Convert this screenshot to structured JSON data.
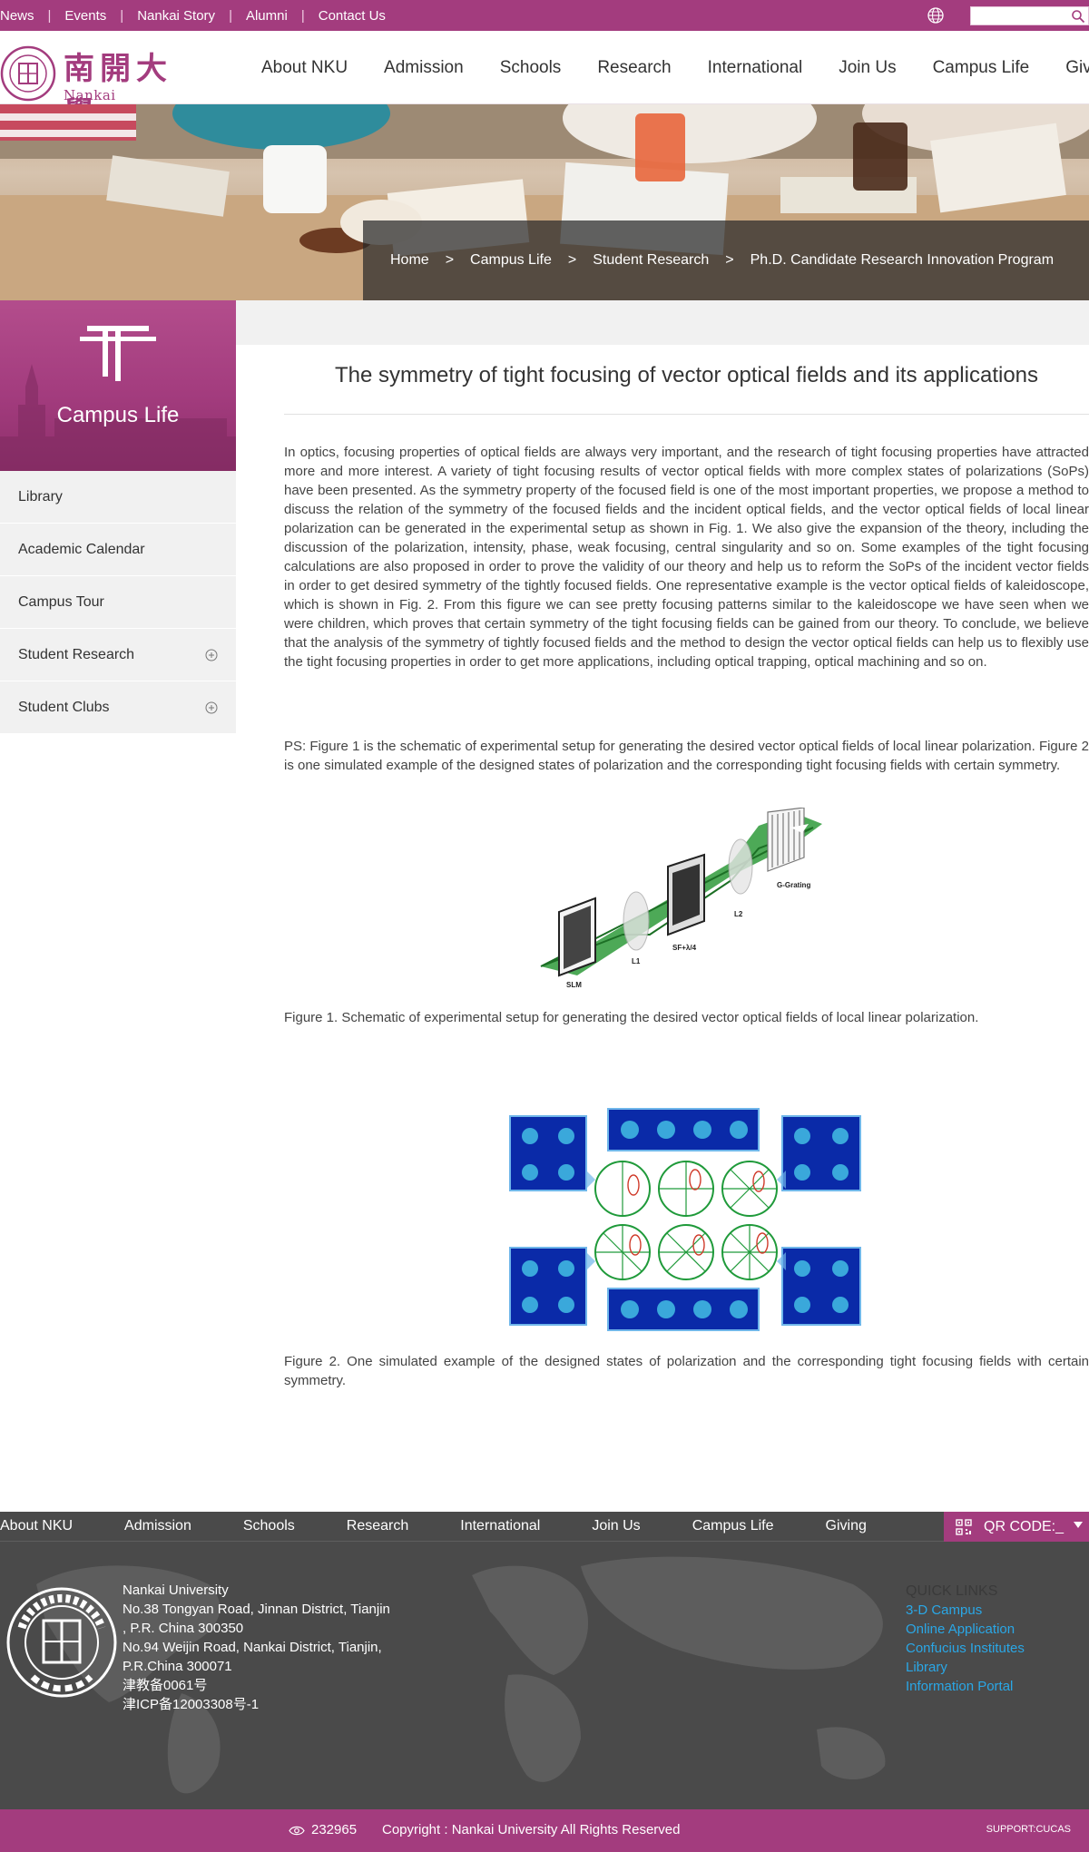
{
  "topbar": {
    "links": [
      "News",
      "Events",
      "Nankai Story",
      "Alumni",
      "Contact Us"
    ],
    "search": {
      "value": "",
      "placeholder": ""
    }
  },
  "header": {
    "logo_cn": "南開大學",
    "logo_en": "Nankai University",
    "nav": [
      "About NKU",
      "Admission",
      "Schools",
      "Research",
      "International",
      "Join Us",
      "Campus Life",
      "Giving"
    ]
  },
  "breadcrumb": [
    "Home",
    "Campus Life",
    "Student Research",
    "Ph.D. Candidate Research Innovation Program"
  ],
  "breadcrumb_sep": ">",
  "sidebar": {
    "title": "Campus Life",
    "items": [
      {
        "label": "Library",
        "expandable": false
      },
      {
        "label": "Academic Calendar",
        "expandable": false
      },
      {
        "label": "Campus Tour",
        "expandable": false
      },
      {
        "label": "Student Research",
        "expandable": true
      },
      {
        "label": "Student Clubs",
        "expandable": true
      }
    ]
  },
  "article": {
    "title": "The symmetry of tight focusing of vector optical fields and its applications",
    "paragraph1": "In optics, focusing properties of optical fields are always very important, and the research of tight focusing properties have attracted more and more interest. A variety of tight focusing results of vector optical fields with more complex states of polarizations (SoPs) have been presented. As the symmetry property of the focused field is one of the most important properties, we propose a method to discuss the relation of the symmetry of the focused fields and the incident optical fields, and the vector optical fields of local linear polarization can be generated in the experimental setup as shown in Fig. 1. We also give the expansion of the theory, including the discussion of the polarization, intensity, phase, weak focusing, central singularity and so on. Some examples of the tight focusing calculations are also proposed in order to prove the validity of our theory and help us to reform the SoPs of the incident vector fields in order to get desired symmetry of the tightly focused fields. One representative example is the vector optical fields of kaleidoscope, which is shown in Fig. 2. From this figure we can see pretty focusing patterns similar to the kaleidoscope we have seen when we were children, which proves that certain symmetry of the tight focusing fields can be gained from our theory. To conclude, we believe that the analysis of the symmetry of tightly focused fields and the method to design the vector optical fields can help us to flexibly use the tight focusing properties in order to get more applications, including optical trapping, optical machining and so on.",
    "paragraph2": "PS: Figure 1 is the schematic of experimental setup for generating the desired vector optical fields of local linear polarization. Figure 2 is one simulated example of the designed states of polarization and the corresponding tight focusing fields with certain symmetry.",
    "figure1_labels": [
      "SLM",
      "L1",
      "SF+λ/4",
      "L2",
      "G-Grating"
    ],
    "caption1": "Figure 1. Schematic of experimental setup for generating the desired vector optical fields of local linear polarization.",
    "caption2": "Figure 2. One simulated example of the designed states of polarization and the corresponding tight focusing fields with certain symmetry."
  },
  "footer": {
    "nav": [
      "About NKU",
      "Admission",
      "Schools",
      "Research",
      "International",
      "Join Us",
      "Campus Life",
      "Giving"
    ],
    "qr_label": "QR CODE:_",
    "address_lines": [
      "Nankai University",
      "No.38 Tongyan Road, Jinnan District, Tianjin",
      ", P.R. China 300350",
      "No.94 Weijin Road,  Nankai District, Tianjin,",
      "P.R.China  300071",
      "津教备0061号",
      "津ICP备12003308号-1"
    ],
    "quick_links_title": "QUICK LINKS",
    "quick_links": [
      "3-D Campus",
      "Online Application",
      "Confucius Institutes",
      "Library",
      "Information Portal"
    ],
    "visit_count": "232965",
    "copyright": "Copyright : Nankai University All Rights Reserved",
    "support": "SUPPORT:CUCAS"
  },
  "colors": {
    "brand": "#a33c7e",
    "footer_bg": "#4a4a4a",
    "link_blue": "#2aa7e6"
  },
  "icons": [
    "globe-icon",
    "search-icon",
    "plus-circle-icon",
    "qr-code-icon",
    "caret-down-icon",
    "eye-icon"
  ]
}
